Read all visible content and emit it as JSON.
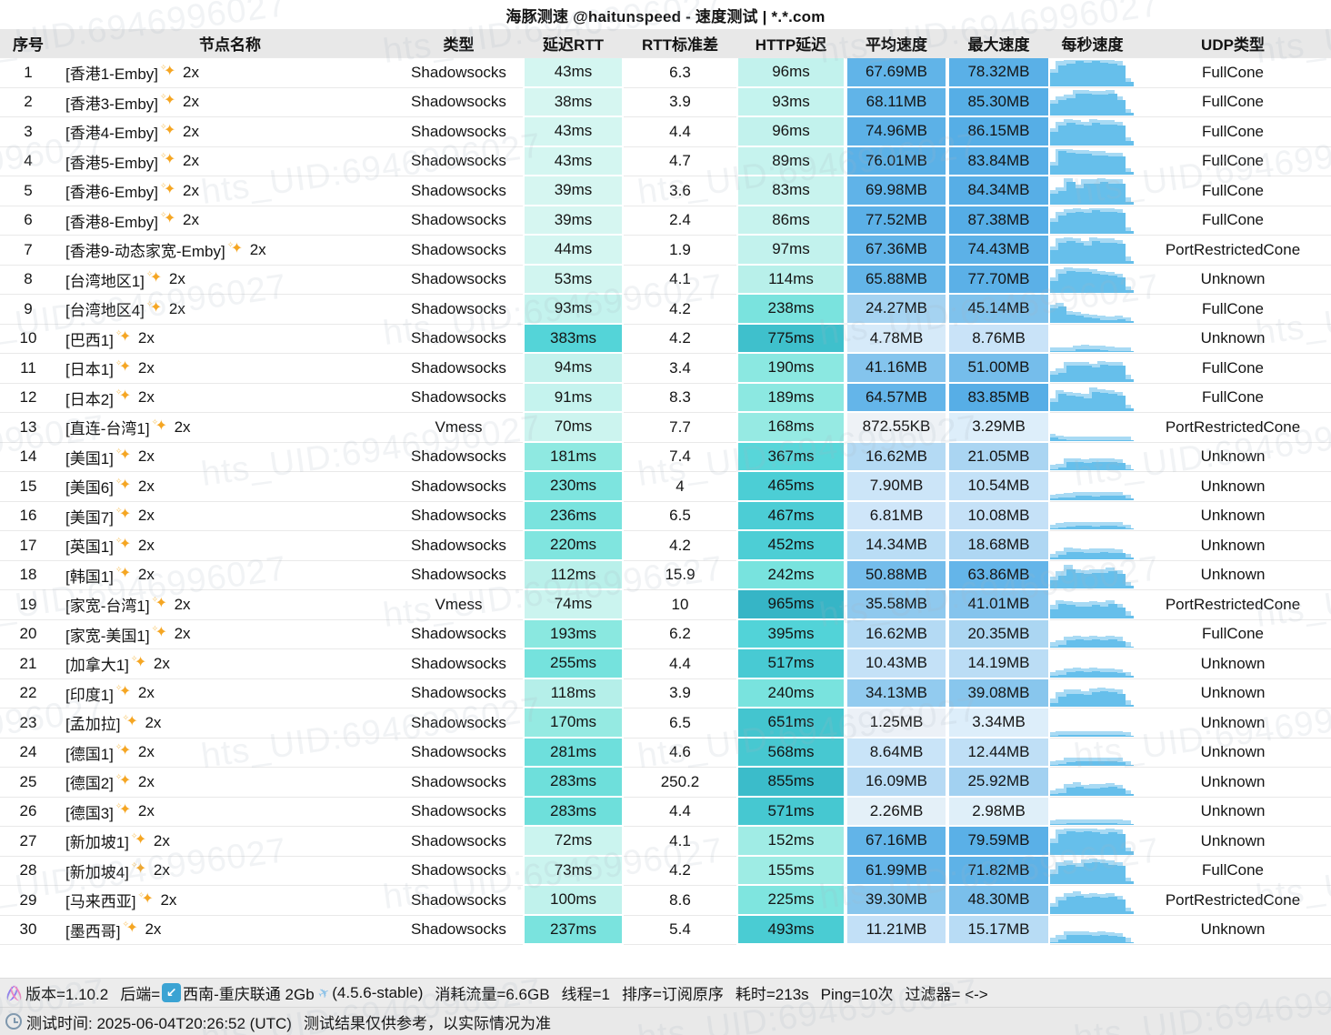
{
  "title": "海豚测速 @haitunspeed - 速度测试 | *.*.com",
  "watermark": "hts_UID:6946996027",
  "columns": [
    "序号",
    "节点名称",
    "类型",
    "延迟RTT",
    "RTT标准差",
    "HTTP延迟",
    "平均速度",
    "最大速度",
    "每秒速度",
    "UDP类型"
  ],
  "icons": {
    "sparkle_main": "✦",
    "sparkle_small": "✧",
    "backend_arrow": "↙",
    "plane": "✈"
  },
  "colors": {
    "latency_stops": [
      [
        0,
        "#eefbf8"
      ],
      [
        40,
        "#d5f6f1"
      ],
      [
        90,
        "#c6f3ee"
      ],
      [
        120,
        "#b4efe9"
      ],
      [
        180,
        "#8fe9e1"
      ],
      [
        240,
        "#79e3de"
      ],
      [
        290,
        "#6cdedb"
      ],
      [
        390,
        "#52d3d8"
      ],
      [
        500,
        "#49cbd3"
      ],
      [
        780,
        "#3fc0cc"
      ],
      [
        860,
        "#3bbcca"
      ],
      [
        970,
        "#36b5c6"
      ]
    ],
    "speed_stops": [
      [
        0,
        "#f3f3f3"
      ],
      [
        0.9,
        "#eef2f6"
      ],
      [
        3.3,
        "#ddeefa"
      ],
      [
        5,
        "#d5e9f9"
      ],
      [
        9,
        "#c8e3f8"
      ],
      [
        11,
        "#c2e0f7"
      ],
      [
        15,
        "#b9dcf5"
      ],
      [
        17,
        "#b3d9f4"
      ],
      [
        21,
        "#aad5f2"
      ],
      [
        25,
        "#a4d2f1"
      ],
      [
        34,
        "#92cbef"
      ],
      [
        40,
        "#86c5ed"
      ],
      [
        45,
        "#7fc2ec"
      ],
      [
        51,
        "#75bdeb"
      ],
      [
        62,
        "#66b6e9"
      ],
      [
        68,
        "#61b4e8"
      ],
      [
        75,
        "#5cb1e7"
      ],
      [
        88,
        "#55ade6"
      ]
    ],
    "bar_front": "#66bfeb",
    "bar_back": "#a8daf4"
  },
  "rows": [
    {
      "num": "1",
      "name": "[香港1-Emby]",
      "mult": "2x",
      "type": "Shadowsocks",
      "rtt": "43ms",
      "std": "6.3",
      "http": "96ms",
      "avg": "67.69MB",
      "max": "78.32MB",
      "udp": "FullCone",
      "spark": [
        0.5,
        0.8,
        0.85,
        0.95,
        0.9,
        0.95,
        0.9,
        0.85,
        0.8,
        0.15
      ]
    },
    {
      "num": "2",
      "name": "[香港3-Emby]",
      "mult": "2x",
      "type": "Shadowsocks",
      "rtt": "38ms",
      "std": "3.9",
      "http": "93ms",
      "avg": "68.11MB",
      "max": "85.30MB",
      "udp": "FullCone",
      "spark": [
        0.45,
        0.6,
        0.65,
        0.85,
        0.85,
        0.8,
        0.8,
        0.85,
        0.6,
        0.1
      ]
    },
    {
      "num": "3",
      "name": "[香港4-Emby]",
      "mult": "2x",
      "type": "Shadowsocks",
      "rtt": "43ms",
      "std": "4.4",
      "http": "96ms",
      "avg": "74.96MB",
      "max": "86.15MB",
      "udp": "FullCone",
      "spark": [
        0.5,
        0.75,
        0.85,
        0.8,
        0.75,
        0.85,
        0.8,
        0.8,
        0.75,
        0.15
      ]
    },
    {
      "num": "4",
      "name": "[香港5-Emby]",
      "mult": "2x",
      "type": "Shadowsocks",
      "rtt": "43ms",
      "std": "4.7",
      "http": "89ms",
      "avg": "76.01MB",
      "max": "83.84MB",
      "udp": "FullCone",
      "spark": [
        0.35,
        0.9,
        0.85,
        0.8,
        0.8,
        0.75,
        0.75,
        0.7,
        0.7,
        0.1
      ]
    },
    {
      "num": "5",
      "name": "[香港6-Emby]",
      "mult": "2x",
      "type": "Shadowsocks",
      "rtt": "39ms",
      "std": "3.6",
      "http": "83ms",
      "avg": "69.98MB",
      "max": "84.34MB",
      "udp": "FullCone",
      "spark": [
        0.4,
        0.5,
        0.85,
        0.6,
        0.8,
        0.8,
        0.85,
        0.8,
        0.8,
        0.1
      ]
    },
    {
      "num": "6",
      "name": "[香港8-Emby]",
      "mult": "2x",
      "type": "Shadowsocks",
      "rtt": "39ms",
      "std": "2.4",
      "http": "86ms",
      "avg": "77.52MB",
      "max": "87.38MB",
      "udp": "FullCone",
      "spark": [
        0.45,
        0.7,
        0.8,
        0.85,
        0.8,
        0.9,
        0.85,
        0.85,
        0.8,
        0.1
      ]
    },
    {
      "num": "7",
      "name": "[香港9-动态家宽-Emby]",
      "mult": "2x",
      "type": "Shadowsocks",
      "rtt": "44ms",
      "std": "1.9",
      "http": "97ms",
      "avg": "67.36MB",
      "max": "74.43MB",
      "udp": "PortRestrictedCone",
      "spark": [
        0.5,
        0.8,
        0.85,
        0.8,
        0.7,
        0.85,
        0.8,
        0.8,
        0.75,
        0.1
      ]
    },
    {
      "num": "8",
      "name": "[台湾地区1]",
      "mult": "2x",
      "type": "Shadowsocks",
      "rtt": "53ms",
      "std": "4.1",
      "http": "114ms",
      "avg": "65.88MB",
      "max": "77.70MB",
      "udp": "Unknown",
      "spark": [
        0.45,
        0.75,
        0.85,
        0.8,
        0.8,
        0.75,
        0.7,
        0.65,
        0.6,
        0.1
      ]
    },
    {
      "num": "9",
      "name": "[台湾地区4]",
      "mult": "2x",
      "type": "Shadowsocks",
      "rtt": "93ms",
      "std": "4.2",
      "http": "238ms",
      "avg": "24.27MB",
      "max": "45.14MB",
      "udp": "FullCone",
      "spark": [
        0.55,
        0.6,
        0.3,
        0.25,
        0.2,
        0.15,
        0.1,
        0.08,
        0.12,
        0.05
      ]
    },
    {
      "num": "10",
      "name": "[巴西1]",
      "mult": "2x",
      "type": "Shadowsocks",
      "rtt": "383ms",
      "std": "4.2",
      "http": "775ms",
      "avg": "4.78MB",
      "max": "8.76MB",
      "udp": "Unknown",
      "spark": [
        0.02,
        0.02,
        0.03,
        0.1,
        0.12,
        0.1,
        0.08,
        0.05,
        0.04,
        0.02
      ]
    },
    {
      "num": "11",
      "name": "[日本1]",
      "mult": "2x",
      "type": "Shadowsocks",
      "rtt": "94ms",
      "std": "3.4",
      "http": "190ms",
      "avg": "41.16MB",
      "max": "51.00MB",
      "udp": "FullCone",
      "spark": [
        0.25,
        0.35,
        0.6,
        0.6,
        0.6,
        0.55,
        0.65,
        0.6,
        0.6,
        0.1
      ]
    },
    {
      "num": "12",
      "name": "[日本2]",
      "mult": "2x",
      "type": "Shadowsocks",
      "rtt": "91ms",
      "std": "8.3",
      "http": "189ms",
      "avg": "64.57MB",
      "max": "83.85MB",
      "udp": "FullCone",
      "spark": [
        0.35,
        0.65,
        0.6,
        0.55,
        0.5,
        0.75,
        0.7,
        0.65,
        0.6,
        0.1
      ]
    },
    {
      "num": "13",
      "name": "[直连-台湾1]",
      "mult": "2x",
      "type": "Vmess",
      "rtt": "70ms",
      "std": "7.7",
      "http": "168ms",
      "avg": "872.55KB",
      "max": "3.29MB",
      "udp": "PortRestrictedCone",
      "spark": [
        0.12,
        0.05,
        0.02,
        0.02,
        0.02,
        0.02,
        0.02,
        0.02,
        0.02,
        0.02
      ]
    },
    {
      "num": "14",
      "name": "[美国1]",
      "mult": "2x",
      "type": "Shadowsocks",
      "rtt": "181ms",
      "std": "7.4",
      "http": "367ms",
      "avg": "16.62MB",
      "max": "21.05MB",
      "udp": "Unknown",
      "spark": [
        0.05,
        0.1,
        0.3,
        0.3,
        0.28,
        0.3,
        0.32,
        0.3,
        0.28,
        0.05
      ]
    },
    {
      "num": "15",
      "name": "[美国6]",
      "mult": "2x",
      "type": "Shadowsocks",
      "rtt": "230ms",
      "std": "4",
      "http": "465ms",
      "avg": "7.90MB",
      "max": "10.54MB",
      "udp": "Unknown",
      "spark": [
        0.05,
        0.08,
        0.1,
        0.15,
        0.15,
        0.14,
        0.15,
        0.16,
        0.15,
        0.04
      ]
    },
    {
      "num": "16",
      "name": "[美国7]",
      "mult": "2x",
      "type": "Shadowsocks",
      "rtt": "236ms",
      "std": "6.5",
      "http": "467ms",
      "avg": "6.81MB",
      "max": "10.08MB",
      "udp": "Unknown",
      "spark": [
        0.04,
        0.08,
        0.12,
        0.14,
        0.13,
        0.12,
        0.14,
        0.13,
        0.12,
        0.04
      ]
    },
    {
      "num": "17",
      "name": "[英国1]",
      "mult": "2x",
      "type": "Shadowsocks",
      "rtt": "220ms",
      "std": "4.2",
      "http": "452ms",
      "avg": "14.34MB",
      "max": "18.68MB",
      "udp": "Unknown",
      "spark": [
        0.06,
        0.15,
        0.28,
        0.25,
        0.22,
        0.24,
        0.25,
        0.24,
        0.22,
        0.05
      ]
    },
    {
      "num": "18",
      "name": "[韩国1]",
      "mult": "2x",
      "type": "Shadowsocks",
      "rtt": "112ms",
      "std": "15.9",
      "http": "242ms",
      "avg": "50.88MB",
      "max": "63.86MB",
      "udp": "Unknown",
      "spark": [
        0.3,
        0.5,
        0.75,
        0.6,
        0.55,
        0.6,
        0.6,
        0.65,
        0.55,
        0.1
      ]
    },
    {
      "num": "19",
      "name": "[家宽-台湾1]",
      "mult": "2x",
      "type": "Vmess",
      "rtt": "74ms",
      "std": "10",
      "http": "965ms",
      "avg": "35.58MB",
      "max": "41.01MB",
      "udp": "PortRestrictedCone",
      "spark": [
        0.35,
        0.55,
        0.5,
        0.45,
        0.45,
        0.5,
        0.45,
        0.55,
        0.4,
        0.1
      ]
    },
    {
      "num": "20",
      "name": "[家宽-美国1]",
      "mult": "2x",
      "type": "Shadowsocks",
      "rtt": "193ms",
      "std": "6.2",
      "http": "395ms",
      "avg": "16.62MB",
      "max": "20.35MB",
      "udp": "FullCone",
      "spark": [
        0.05,
        0.12,
        0.28,
        0.3,
        0.28,
        0.3,
        0.28,
        0.3,
        0.26,
        0.05
      ]
    },
    {
      "num": "21",
      "name": "[加拿大1]",
      "mult": "2x",
      "type": "Shadowsocks",
      "rtt": "255ms",
      "std": "4.4",
      "http": "517ms",
      "avg": "10.43MB",
      "max": "14.19MB",
      "udp": "Unknown",
      "spark": [
        0.04,
        0.1,
        0.2,
        0.22,
        0.2,
        0.22,
        0.2,
        0.18,
        0.16,
        0.04
      ]
    },
    {
      "num": "22",
      "name": "[印度1]",
      "mult": "2x",
      "type": "Shadowsocks",
      "rtt": "118ms",
      "std": "3.9",
      "http": "240ms",
      "avg": "34.13MB",
      "max": "39.08MB",
      "udp": "Unknown",
      "spark": [
        0.15,
        0.4,
        0.5,
        0.5,
        0.45,
        0.55,
        0.6,
        0.55,
        0.5,
        0.08
      ]
    },
    {
      "num": "23",
      "name": "[孟加拉]",
      "mult": "2x",
      "type": "Shadowsocks",
      "rtt": "170ms",
      "std": "6.5",
      "http": "651ms",
      "avg": "1.25MB",
      "max": "3.34MB",
      "udp": "Unknown",
      "spark": [
        0.02,
        0.04,
        0.05,
        0.06,
        0.05,
        0.05,
        0.06,
        0.05,
        0.04,
        0.02
      ]
    },
    {
      "num": "24",
      "name": "[德国1]",
      "mult": "2x",
      "type": "Shadowsocks",
      "rtt": "281ms",
      "std": "4.6",
      "http": "568ms",
      "avg": "8.64MB",
      "max": "12.44MB",
      "udp": "Unknown",
      "spark": [
        0.03,
        0.06,
        0.15,
        0.18,
        0.16,
        0.18,
        0.17,
        0.16,
        0.15,
        0.03
      ]
    },
    {
      "num": "25",
      "name": "[德国2]",
      "mult": "2x",
      "type": "Shadowsocks",
      "rtt": "283ms",
      "std": "250.2",
      "http": "855ms",
      "avg": "16.09MB",
      "max": "25.92MB",
      "udp": "Unknown",
      "spark": [
        0.05,
        0.1,
        0.3,
        0.35,
        0.25,
        0.28,
        0.3,
        0.32,
        0.25,
        0.05
      ]
    },
    {
      "num": "26",
      "name": "[德国3]",
      "mult": "2x",
      "type": "Shadowsocks",
      "rtt": "283ms",
      "std": "4.4",
      "http": "571ms",
      "avg": "2.26MB",
      "max": "2.98MB",
      "udp": "Unknown",
      "spark": [
        0.02,
        0.05,
        0.06,
        0.07,
        0.06,
        0.06,
        0.07,
        0.06,
        0.05,
        0.02
      ]
    },
    {
      "num": "27",
      "name": "[新加坡1]",
      "mult": "2x",
      "type": "Shadowsocks",
      "rtt": "72ms",
      "std": "4.1",
      "http": "152ms",
      "avg": "67.16MB",
      "max": "79.59MB",
      "udp": "Unknown",
      "spark": [
        0.45,
        0.8,
        0.9,
        0.85,
        0.9,
        0.85,
        0.8,
        0.85,
        0.8,
        0.12
      ]
    },
    {
      "num": "28",
      "name": "[新加坡4]",
      "mult": "2x",
      "type": "Shadowsocks",
      "rtt": "73ms",
      "std": "4.2",
      "http": "155ms",
      "avg": "61.99MB",
      "max": "71.82MB",
      "udp": "FullCone",
      "spark": [
        0.4,
        0.7,
        0.75,
        0.65,
        0.8,
        0.85,
        0.8,
        0.75,
        0.7,
        0.1
      ]
    },
    {
      "num": "29",
      "name": "[马来西亚]",
      "mult": "2x",
      "type": "Shadowsocks",
      "rtt": "100ms",
      "std": "8.6",
      "http": "225ms",
      "avg": "39.30MB",
      "max": "48.30MB",
      "udp": "PortRestrictedCone",
      "spark": [
        0.25,
        0.5,
        0.65,
        0.7,
        0.6,
        0.65,
        0.6,
        0.65,
        0.55,
        0.08
      ]
    },
    {
      "num": "30",
      "name": "[墨西哥]",
      "mult": "2x",
      "type": "Shadowsocks",
      "rtt": "237ms",
      "std": "5.4",
      "http": "493ms",
      "avg": "11.21MB",
      "max": "15.17MB",
      "udp": "Unknown",
      "spark": [
        0.05,
        0.15,
        0.3,
        0.32,
        0.3,
        0.28,
        0.3,
        0.28,
        0.25,
        0.05
      ]
    }
  ],
  "footer": {
    "version": "版本=1.10.2",
    "backend_label": "后端=",
    "backend_name": "西南-重庆联通 2Gb",
    "backend_version": "(4.5.6-stable)",
    "traffic": "消耗流量=6.6GB",
    "threads": "线程=1",
    "sort": "排序=订阅原序",
    "duration": "耗时=213s",
    "ping": "Ping=10次",
    "filter": "过滤器= <->",
    "time": "测试时间: 2025-06-04T20:26:52 (UTC)",
    "disclaimer": "测试结果仅供参考，以实际情况为准"
  }
}
